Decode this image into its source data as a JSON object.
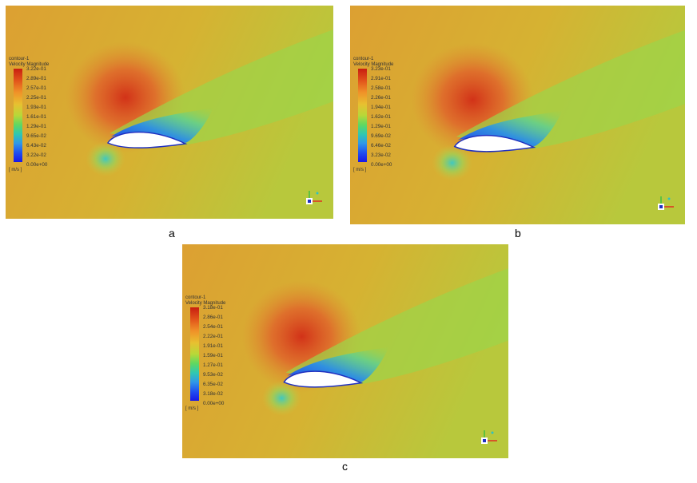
{
  "panels": [
    {
      "caption": "a",
      "legend": {
        "title": "contour-1",
        "subtitle": "Velocity Magnitude",
        "unit": "[ m/s ]",
        "ticks": [
          "3.22e-01",
          "2.89e-01",
          "2.57e-01",
          "2.25e-01",
          "1.93e-01",
          "1.61e-01",
          "1.29e-01",
          "9.65e-02",
          "6.43e-02",
          "3.22e-02",
          "0.00e+00"
        ]
      }
    },
    {
      "caption": "b",
      "legend": {
        "title": "contour-1",
        "subtitle": "Velocity Magnitude",
        "unit": "[ m/s ]",
        "ticks": [
          "3.23e-01",
          "2.91e-01",
          "2.58e-01",
          "2.26e-01",
          "1.94e-01",
          "1.62e-01",
          "1.29e-01",
          "9.69e-02",
          "6.46e-02",
          "3.23e-02",
          "0.00e+00"
        ]
      }
    },
    {
      "caption": "c",
      "legend": {
        "title": "contour-1",
        "subtitle": "Velocity Magnitude",
        "unit": "[ m/s ]",
        "ticks": [
          "3.18e-01",
          "2.86e-01",
          "2.54e-01",
          "2.22e-01",
          "1.91e-01",
          "1.59e-01",
          "1.27e-01",
          "9.53e-02",
          "6.35e-02",
          "3.18e-02",
          "0.00e+00"
        ]
      }
    }
  ],
  "colors": {
    "max": "#c81e10",
    "min": "#1818e8",
    "background": "#d8b030"
  }
}
